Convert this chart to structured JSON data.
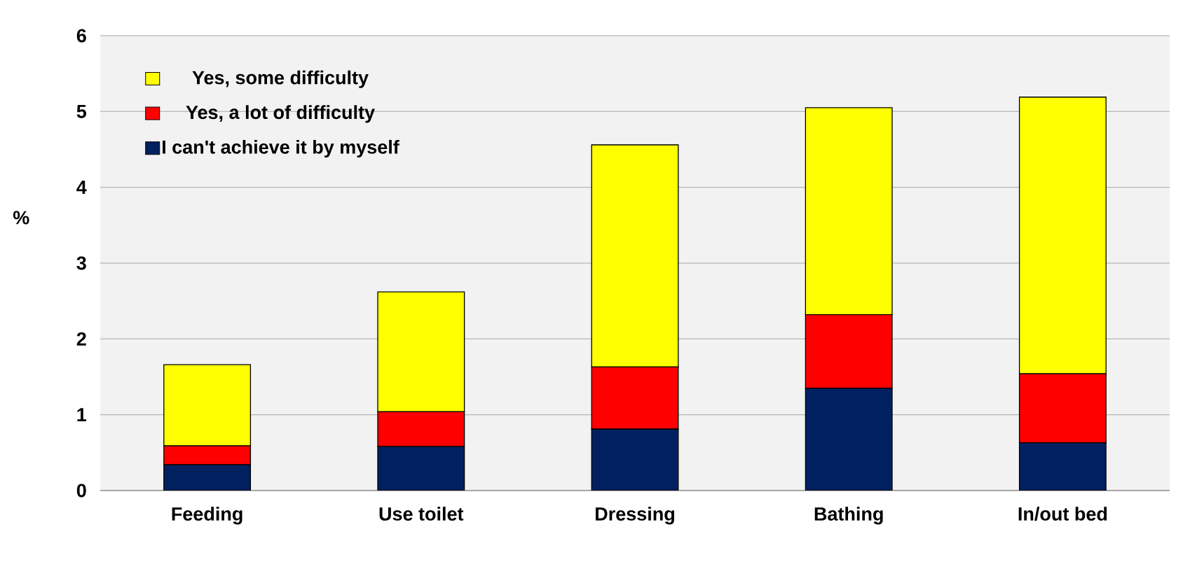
{
  "chart_data": {
    "type": "bar",
    "stacked": true,
    "ylabel": "%",
    "categories": [
      "Feeding",
      "Use toilet",
      "Dressing",
      "Bathing",
      "In/out bed"
    ],
    "series": [
      {
        "name": "I can't achieve it by myself",
        "color": "#002060",
        "values": [
          0.34,
          0.58,
          0.81,
          1.35,
          0.63
        ]
      },
      {
        "name": "Yes, a lot of difficulty",
        "color": "#ff0000",
        "values": [
          0.25,
          0.46,
          0.82,
          0.97,
          0.91
        ]
      },
      {
        "name": "Yes, some difficulty",
        "color": "#ffff00",
        "values": [
          1.07,
          1.58,
          2.93,
          2.73,
          3.65
        ]
      }
    ],
    "ylim": [
      0,
      6
    ],
    "yticks": [
      0,
      1,
      2,
      3,
      4,
      5,
      6
    ],
    "grid": "y",
    "legend": "top left"
  }
}
